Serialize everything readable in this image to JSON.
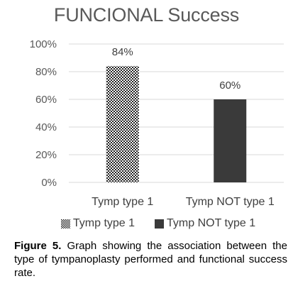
{
  "chart_data": {
    "type": "bar",
    "title": "FUNCIONAL Success",
    "categories": [
      "Tymp type 1",
      "Tymp NOT type 1"
    ],
    "values": [
      84,
      60
    ],
    "data_labels": [
      "84%",
      "60%"
    ],
    "ylim": [
      0,
      100
    ],
    "yticks": [
      0,
      20,
      40,
      60,
      80,
      100
    ],
    "ytick_labels": [
      "0%",
      "20%",
      "40%",
      "60%",
      "80%",
      "100%"
    ],
    "grid": true,
    "legend_position": "bottom",
    "legend": [
      {
        "label": "Tymp type 1",
        "fill": "pattern"
      },
      {
        "label": "Tymp NOT type 1",
        "fill": "#3a3a3a"
      }
    ],
    "colors": {
      "bar1_pattern_fg": "#222222",
      "bar1_pattern_bg": "#ffffff",
      "bar2": "#3a3a3a",
      "grid": "#d9d9d9",
      "text": "#595959"
    }
  },
  "caption": {
    "label": "Figure 5.",
    "text": " Graph showing the association between the type of tympanoplasty performed and functional success rate."
  }
}
